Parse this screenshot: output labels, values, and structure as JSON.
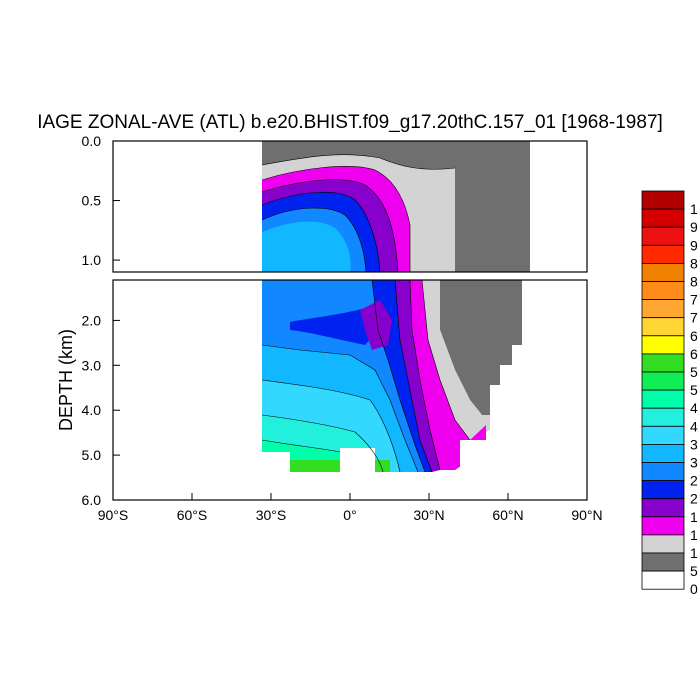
{
  "chart_data": {
    "type": "heatmap",
    "title": "IAGE ZONAL-AVE (ATL) b.e20.BHIST.f09_g17.20thC.157_01 [1968-1987]",
    "ylabel": "DEPTH (km)",
    "xlim": [
      -90,
      90
    ],
    "ylim_upper_panel": [
      0.0,
      1.1
    ],
    "ylim_lower_panel": [
      1.1,
      6.0
    ],
    "y_inverted": true,
    "x_ticks": [
      {
        "value": -90,
        "label": "90°S"
      },
      {
        "value": -60,
        "label": "60°S"
      },
      {
        "value": -30,
        "label": "30°S"
      },
      {
        "value": 0,
        "label": "0°"
      },
      {
        "value": 30,
        "label": "30°N"
      },
      {
        "value": 60,
        "label": "60°N"
      },
      {
        "value": 90,
        "label": "90°N"
      }
    ],
    "y_ticks_upper": [
      {
        "value": 0.0,
        "label": "0.0"
      },
      {
        "value": 0.5,
        "label": "0.5"
      },
      {
        "value": 1.0,
        "label": "1.0"
      }
    ],
    "y_ticks_lower": [
      {
        "value": 2.0,
        "label": "2.0"
      },
      {
        "value": 3.0,
        "label": "3.0"
      },
      {
        "value": 4.0,
        "label": "4.0"
      },
      {
        "value": 5.0,
        "label": "5.0"
      },
      {
        "value": 6.0,
        "label": "6.0"
      }
    ],
    "colorbar": {
      "levels_visible": [
        "1",
        "9",
        "9",
        "8",
        "8",
        "7",
        "7",
        "6",
        "6",
        "5",
        "5",
        "4",
        "4",
        "3",
        "3",
        "2",
        "2",
        "1",
        "1",
        "1",
        "5",
        "0"
      ],
      "colors": [
        "#b30000",
        "#d40000",
        "#ee1111",
        "#ff2a00",
        "#f08000",
        "#ff8c1a",
        "#ffa733",
        "#ffd633",
        "#ffff00",
        "#33dd22",
        "#11ee55",
        "#00ffaa",
        "#22f0dd",
        "#33d8ff",
        "#11b8ff",
        "#1188ff",
        "#0022ee",
        "#8800cc",
        "#ee00ee",
        "#d3d3d3",
        "#6f6f6f",
        "#ffffff"
      ]
    },
    "fill_regions": [
      {
        "name": "land",
        "color": "#6f6f6f",
        "x_range": [
          -33,
          68
        ],
        "y_range": [
          0.0,
          4.8
        ]
      },
      {
        "name": "oldest-water-below-0.5km",
        "color": "#11b8ff",
        "x_range": [
          -33,
          15
        ],
        "y_range": [
          0.6,
          5.0
        ]
      },
      {
        "name": "bottom-green-patch",
        "color": "#33dd22",
        "x_range": [
          -27,
          -3
        ],
        "y_range": [
          5.1,
          5.4
        ]
      }
    ]
  }
}
